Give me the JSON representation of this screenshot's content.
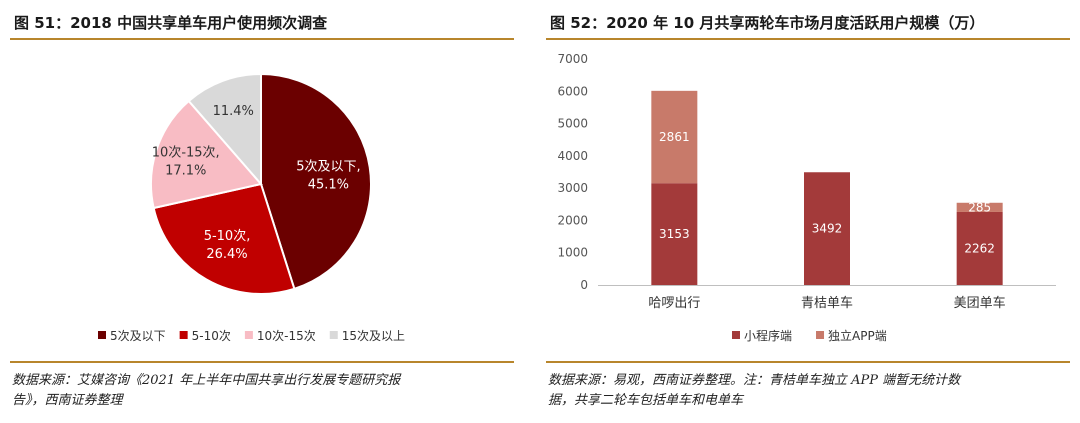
{
  "left": {
    "title": "图 51：2018 中国共享单车用户使用频次调查",
    "source_line1": "数据来源：艾媒咨询《2021 年上半年中国共享出行发展专题研究报",
    "source_line2": "告》，西南证券整理"
  },
  "right": {
    "title": "图 52：2020 年 10 月共享两轮车市场月度活跃用户规模（万）",
    "source_line1": "数据来源：易观，西南证券整理。注：青桔单车独立 APP 端暂无统计数",
    "source_line2": "据，共享二轮车包括单车和电单车"
  },
  "chart_data": [
    {
      "type": "pie",
      "slices": [
        {
          "label": "5次及以下",
          "value": 45.1,
          "display": "45.1%",
          "color": "#6b0000"
        },
        {
          "label": "5-10次",
          "value": 26.4,
          "display": "26.4%",
          "color": "#c00000"
        },
        {
          "label": "10次-15次",
          "value": 17.1,
          "display": "17.1%",
          "color": "#f8bcc4"
        },
        {
          "label": "15次及以上",
          "value": 11.4,
          "display": "11.4%",
          "color": "#d9d9d9"
        }
      ],
      "legend_position": "bottom"
    },
    {
      "type": "bar",
      "stacked": true,
      "categories": [
        "哈啰出行",
        "青桔单车",
        "美团单车"
      ],
      "series": [
        {
          "name": "小程序端",
          "values": [
            3153,
            3492,
            2262
          ],
          "color": "#a33a3a"
        },
        {
          "name": "独立APP端",
          "values": [
            2861,
            null,
            285
          ],
          "color": "#c87a6a"
        }
      ],
      "ylim": [
        0,
        7000
      ],
      "yticks": [
        0,
        1000,
        2000,
        3000,
        4000,
        5000,
        6000,
        7000
      ],
      "grid": false,
      "legend_position": "bottom"
    }
  ]
}
